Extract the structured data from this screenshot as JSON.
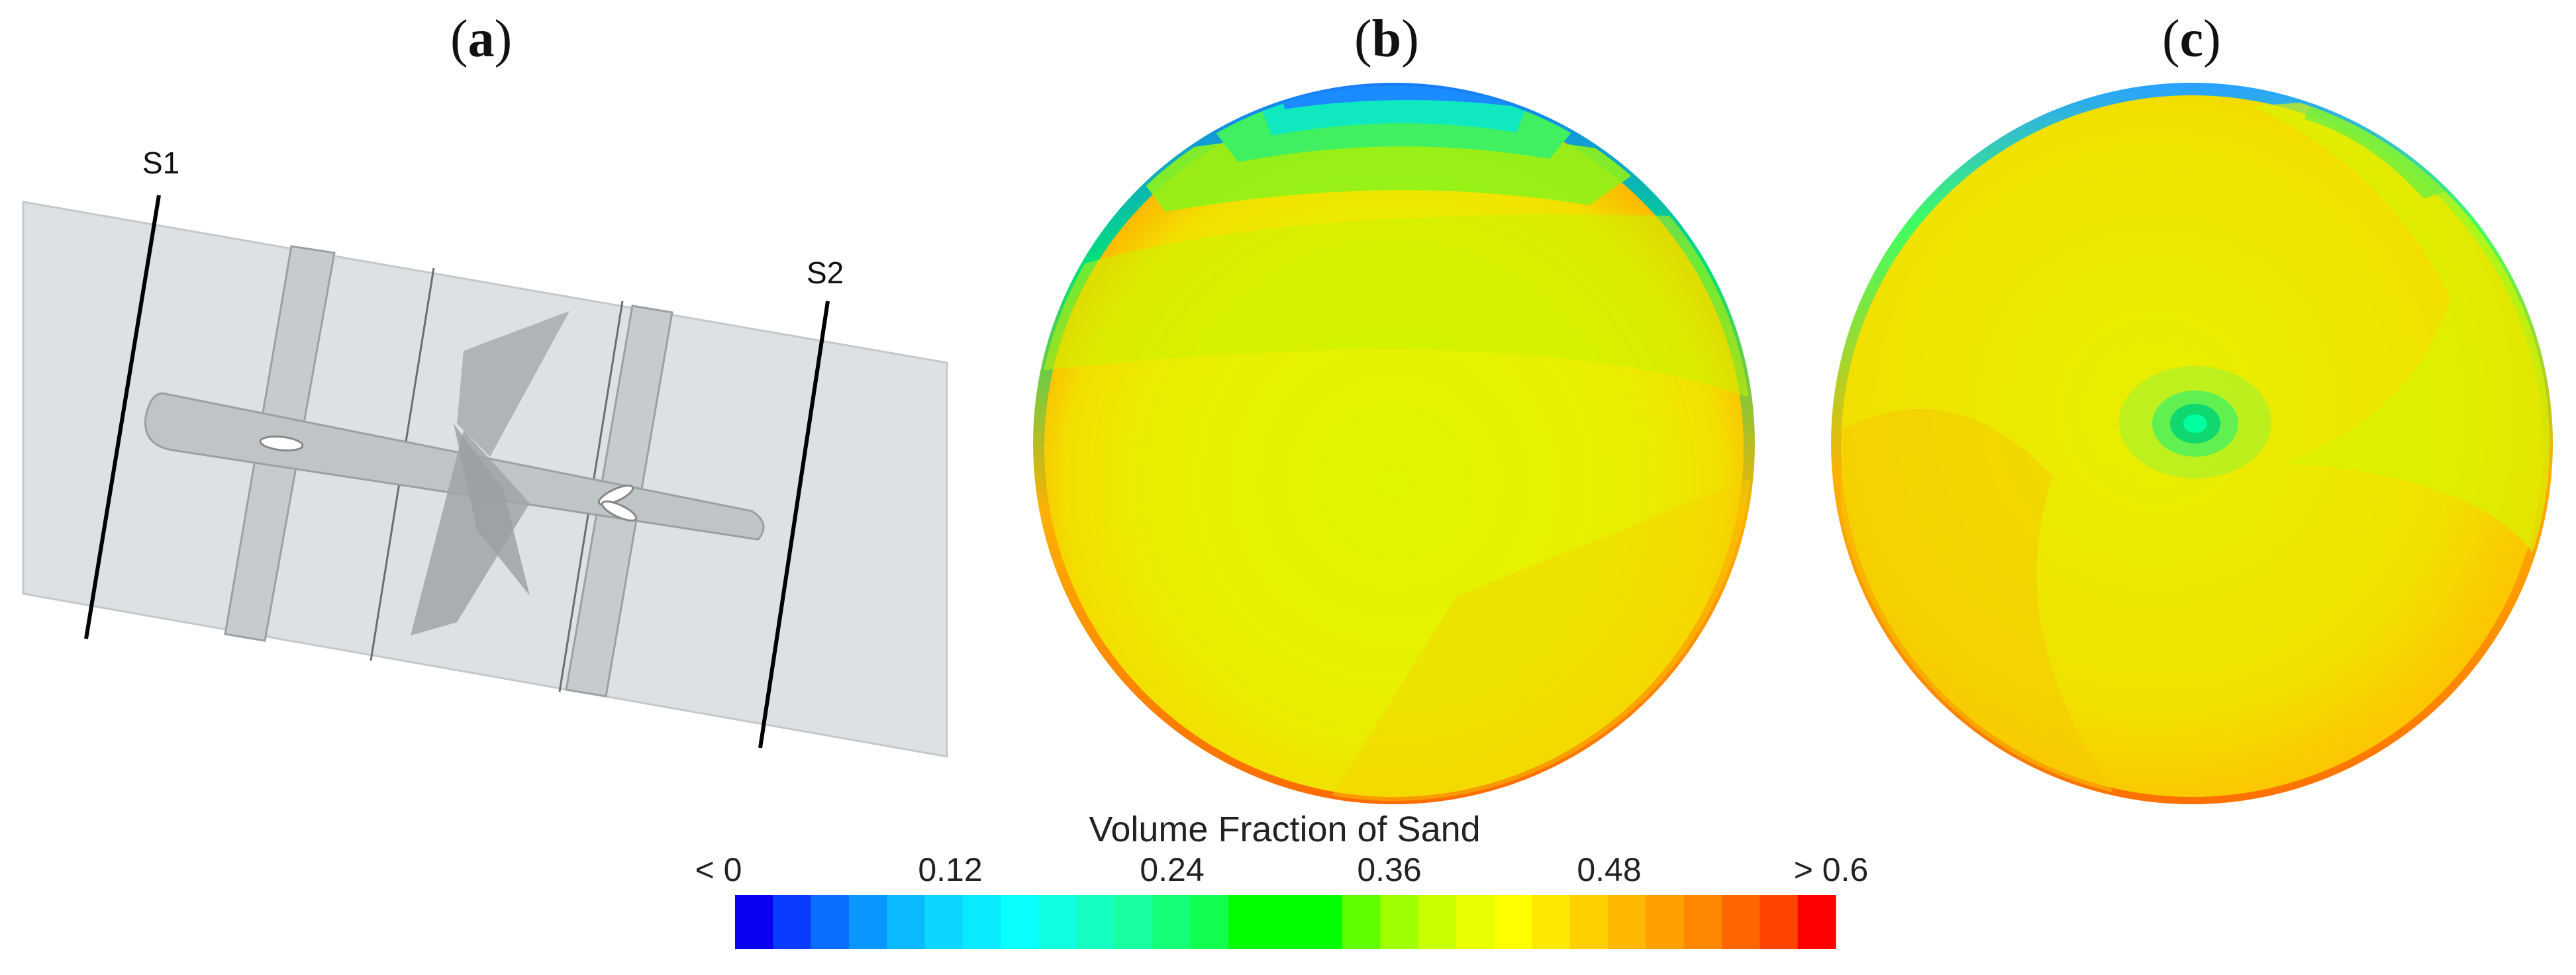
{
  "panels": {
    "a": "a",
    "b": "b",
    "c": "c"
  },
  "diagram": {
    "section_labels": [
      "S1",
      "S2"
    ]
  },
  "colorbar": {
    "title": "Volume Fraction of Sand",
    "tick_labels": [
      "< 0",
      "0.12",
      "0.24",
      "0.36",
      "0.48",
      "> 0.6"
    ],
    "colors": [
      "#0a00f0",
      "#0a3cff",
      "#0a6eff",
      "#0a96ff",
      "#0abaff",
      "#0ad6ff",
      "#0aeaff",
      "#0affff",
      "#10ffe0",
      "#14ffc0",
      "#18ffa0",
      "#14ff78",
      "#10ff50",
      "#00ff00",
      "#00ff00",
      "#00ff00",
      "#60ff00",
      "#a0ff00",
      "#c8ff00",
      "#e8ff00",
      "#ffff00",
      "#ffe800",
      "#ffd000",
      "#ffb800",
      "#ffa000",
      "#ff8800",
      "#ff6600",
      "#ff4400",
      "#ff0000"
    ]
  }
}
